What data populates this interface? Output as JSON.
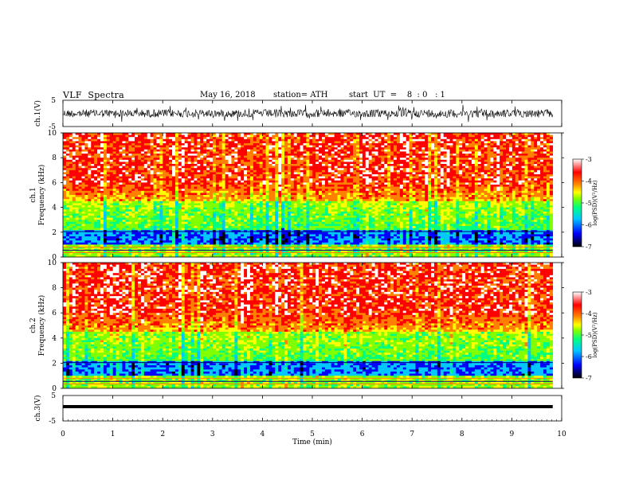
{
  "header": {
    "title": "VLF  Spectra",
    "date": "May 16, 2018",
    "station": "station= ATH",
    "start_ut": "start  UT  =    8  : 0   : 1"
  },
  "chart_data": [
    {
      "type": "line",
      "name": "channel-1-waveform",
      "ylabel": "ch.1(V)",
      "ylim": [
        -5,
        5
      ],
      "yticks": [
        "5",
        "-5"
      ],
      "xlim": [
        0,
        10
      ],
      "description_of_signal": "noisy broadband waveform roughly between -3 and 3 V"
    },
    {
      "type": "heatmap",
      "name": "ch1-spectrogram",
      "ylabel": "ch.1\nFrequency  (kHz)",
      "ylim": [
        0,
        10
      ],
      "yticks": [
        "0",
        "2",
        "4",
        "6",
        "8",
        "10"
      ],
      "xlim": [
        0,
        10
      ],
      "data_end_min": 9.82,
      "colorbar": {
        "label": "log(PSD)(V²/Hz)",
        "range": [
          -7,
          -3
        ],
        "ticks": [
          "-3",
          "-4",
          "-5",
          "-6",
          "-7"
        ]
      }
    },
    {
      "type": "heatmap",
      "name": "ch2-spectrogram",
      "ylabel": "ch.2\nFrequency  (kHz)",
      "ylim": [
        0,
        10
      ],
      "yticks": [
        "0",
        "2",
        "4",
        "6",
        "8",
        "10"
      ],
      "xlim": [
        0,
        10
      ],
      "data_end_min": 9.82,
      "colorbar": {
        "label": "log(PSD)(V²/Hz)",
        "range": [
          -7,
          -3
        ],
        "ticks": [
          "-3",
          "-4",
          "-5",
          "-6",
          "-7"
        ]
      }
    },
    {
      "type": "line",
      "name": "channel-3-waveform",
      "ylabel": "ch.3(V)",
      "ylim": [
        -5,
        5
      ],
      "yticks": [
        "5",
        "0",
        "-5"
      ],
      "xlim": [
        0,
        10
      ],
      "xlabel": "Time  (min)",
      "xticks": [
        "0",
        "1",
        "2",
        "3",
        "4",
        "5",
        "6",
        "7",
        "8",
        "9",
        "10"
      ]
    }
  ],
  "colors": {
    "colormap": [
      "#000000",
      "#0000ff",
      "#00c8ff",
      "#00ff80",
      "#80ff00",
      "#ffff00",
      "#ff8000",
      "#ff0000",
      "#ffffff"
    ]
  }
}
